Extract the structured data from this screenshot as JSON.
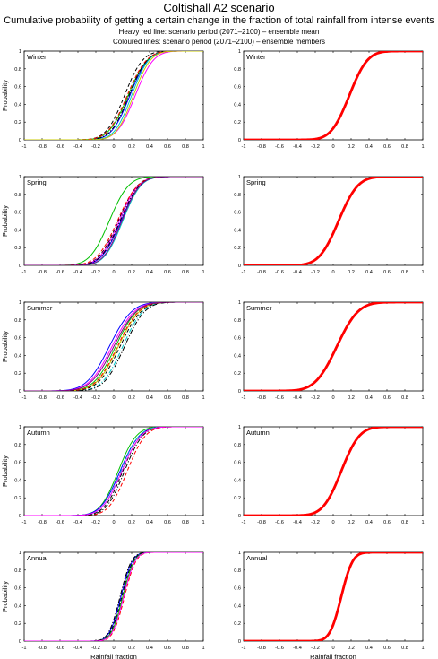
{
  "header": {
    "title": "Coltishall A2 scenario",
    "subtitle": "Cumulative probability of getting a certain change in the fraction of total rainfall from intense events",
    "note_mean": "Heavy red line: scenario period (2071–2100) – ensemble mean",
    "note_members": "Coloured lines: scenario period (2071–2100) – ensemble members"
  },
  "axes": {
    "xlabel": "Rainfall fraction",
    "ylabel": "Probability",
    "xlim": [
      -1,
      1
    ],
    "ylim": [
      0,
      1
    ],
    "xticks": [
      "-1",
      "-0.8",
      "-0.6",
      "-0.4",
      "-0.2",
      "0",
      "0.2",
      "0.4",
      "0.6",
      "0.8",
      "1"
    ],
    "yticks": [
      "0",
      "0.2",
      "0.4",
      "0.6",
      "0.8",
      "1"
    ]
  },
  "member_colors": [
    "#0000ff",
    "#00c000",
    "#ff00ff",
    "#00c8c8",
    "#000000",
    "#c8c800",
    "#ff0000",
    "#800080"
  ],
  "mean_color": "#ff0000",
  "chart_data": [
    {
      "type": "line",
      "season": "Winter",
      "panel": "ensemble members",
      "series": [
        {
          "mu": 0.18,
          "sigma": 0.16,
          "color": "#0000ff",
          "dash": "solid"
        },
        {
          "mu": 0.16,
          "sigma": 0.17,
          "color": "#00c000",
          "dash": "solid"
        },
        {
          "mu": 0.24,
          "sigma": 0.16,
          "color": "#ff00ff",
          "dash": "solid"
        },
        {
          "mu": 0.12,
          "sigma": 0.16,
          "color": "#000000",
          "dash": "dashed"
        },
        {
          "mu": 0.2,
          "sigma": 0.15,
          "color": "#00c8c8",
          "dash": "solid"
        },
        {
          "mu": 0.17,
          "sigma": 0.16,
          "color": "#000000",
          "dash": "dashdot"
        },
        {
          "mu": 0.15,
          "sigma": 0.17,
          "color": "#ff0000",
          "dash": "dashed"
        },
        {
          "mu": 0.22,
          "sigma": 0.15,
          "color": "#c8c800",
          "dash": "solid"
        }
      ]
    },
    {
      "type": "line",
      "season": "Winter",
      "panel": "ensemble mean",
      "series": [
        {
          "mu": 0.18,
          "sigma": 0.16,
          "color": "#ff0000",
          "dash": "heavy"
        }
      ]
    },
    {
      "type": "line",
      "season": "Spring",
      "panel": "ensemble members",
      "series": [
        {
          "mu": -0.05,
          "sigma": 0.17,
          "color": "#00c000",
          "dash": "solid"
        },
        {
          "mu": 0.05,
          "sigma": 0.17,
          "color": "#000000",
          "dash": "dashed"
        },
        {
          "mu": 0.08,
          "sigma": 0.17,
          "color": "#0000ff",
          "dash": "solid"
        },
        {
          "mu": 0.06,
          "sigma": 0.17,
          "color": "#ff00ff",
          "dash": "solid"
        },
        {
          "mu": 0.04,
          "sigma": 0.18,
          "color": "#ff0000",
          "dash": "dashed"
        },
        {
          "mu": 0.1,
          "sigma": 0.16,
          "color": "#00c8c8",
          "dash": "solid"
        },
        {
          "mu": 0.07,
          "sigma": 0.17,
          "color": "#000000",
          "dash": "dashdot"
        },
        {
          "mu": 0.09,
          "sigma": 0.16,
          "color": "#800080",
          "dash": "solid"
        }
      ]
    },
    {
      "type": "line",
      "season": "Spring",
      "panel": "ensemble mean",
      "series": [
        {
          "mu": 0.06,
          "sigma": 0.17,
          "color": "#ff0000",
          "dash": "heavy"
        }
      ]
    },
    {
      "type": "line",
      "season": "Summer",
      "panel": "ensemble members",
      "series": [
        {
          "mu": -0.05,
          "sigma": 0.2,
          "color": "#0000ff",
          "dash": "solid"
        },
        {
          "mu": -0.02,
          "sigma": 0.2,
          "color": "#ff00ff",
          "dash": "solid"
        },
        {
          "mu": 0.02,
          "sigma": 0.19,
          "color": "#00c000",
          "dash": "solid"
        },
        {
          "mu": 0.05,
          "sigma": 0.19,
          "color": "#c8c800",
          "dash": "solid"
        },
        {
          "mu": 0.07,
          "sigma": 0.19,
          "color": "#000000",
          "dash": "dashed"
        },
        {
          "mu": 0.1,
          "sigma": 0.18,
          "color": "#00c8c8",
          "dash": "dashdot"
        },
        {
          "mu": 0.04,
          "sigma": 0.19,
          "color": "#ff0000",
          "dash": "dashed"
        },
        {
          "mu": 0.12,
          "sigma": 0.18,
          "color": "#000000",
          "dash": "dashdot"
        },
        {
          "mu": 0.0,
          "sigma": 0.2,
          "color": "#800080",
          "dash": "solid"
        }
      ]
    },
    {
      "type": "line",
      "season": "Summer",
      "panel": "ensemble mean",
      "series": [
        {
          "mu": 0.04,
          "sigma": 0.19,
          "color": "#ff0000",
          "dash": "heavy"
        }
      ]
    },
    {
      "type": "line",
      "season": "Autumn",
      "panel": "ensemble members",
      "series": [
        {
          "mu": 0.05,
          "sigma": 0.16,
          "color": "#00c000",
          "dash": "solid"
        },
        {
          "mu": 0.07,
          "sigma": 0.17,
          "color": "#0000ff",
          "dash": "solid"
        },
        {
          "mu": 0.1,
          "sigma": 0.16,
          "color": "#000000",
          "dash": "dashed"
        },
        {
          "mu": 0.15,
          "sigma": 0.16,
          "color": "#ff0000",
          "dash": "dashed"
        },
        {
          "mu": 0.08,
          "sigma": 0.16,
          "color": "#00c8c8",
          "dash": "dashdot"
        },
        {
          "mu": 0.12,
          "sigma": 0.16,
          "color": "#000000",
          "dash": "dashdot"
        },
        {
          "mu": 0.09,
          "sigma": 0.17,
          "color": "#ff00ff",
          "dash": "solid"
        }
      ]
    },
    {
      "type": "line",
      "season": "Autumn",
      "panel": "ensemble mean",
      "series": [
        {
          "mu": 0.09,
          "sigma": 0.16,
          "color": "#ff0000",
          "dash": "heavy"
        }
      ]
    },
    {
      "type": "line",
      "season": "Annual",
      "panel": "ensemble members",
      "series": [
        {
          "mu": 0.08,
          "sigma": 0.1,
          "color": "#0000ff",
          "dash": "solid"
        },
        {
          "mu": 0.09,
          "sigma": 0.1,
          "color": "#000000",
          "dash": "dashed"
        },
        {
          "mu": 0.12,
          "sigma": 0.1,
          "color": "#ff0000",
          "dash": "dashed"
        },
        {
          "mu": 0.1,
          "sigma": 0.1,
          "color": "#00c000",
          "dash": "solid"
        },
        {
          "mu": 0.07,
          "sigma": 0.1,
          "color": "#000000",
          "dash": "dashdot"
        },
        {
          "mu": 0.11,
          "sigma": 0.1,
          "color": "#ff00ff",
          "dash": "solid"
        }
      ]
    },
    {
      "type": "line",
      "season": "Annual",
      "panel": "ensemble mean",
      "series": [
        {
          "mu": 0.09,
          "sigma": 0.1,
          "color": "#ff0000",
          "dash": "heavy"
        }
      ]
    }
  ]
}
